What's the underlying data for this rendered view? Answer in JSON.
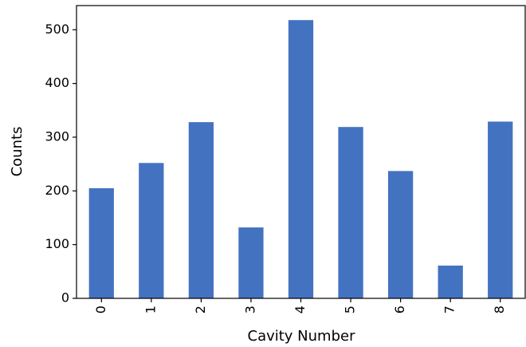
{
  "chart_data": {
    "type": "bar",
    "xlabel": "Cavity Number",
    "ylabel": "Counts",
    "categories": [
      "0",
      "1",
      "2",
      "3",
      "4",
      "5",
      "6",
      "7",
      "8"
    ],
    "values": [
      205,
      252,
      328,
      132,
      518,
      319,
      237,
      61,
      329
    ],
    "color": "#4372c1",
    "ylim": [
      0,
      545
    ],
    "yticks": [
      0,
      100,
      200,
      300,
      400,
      500
    ],
    "grid": false
  }
}
